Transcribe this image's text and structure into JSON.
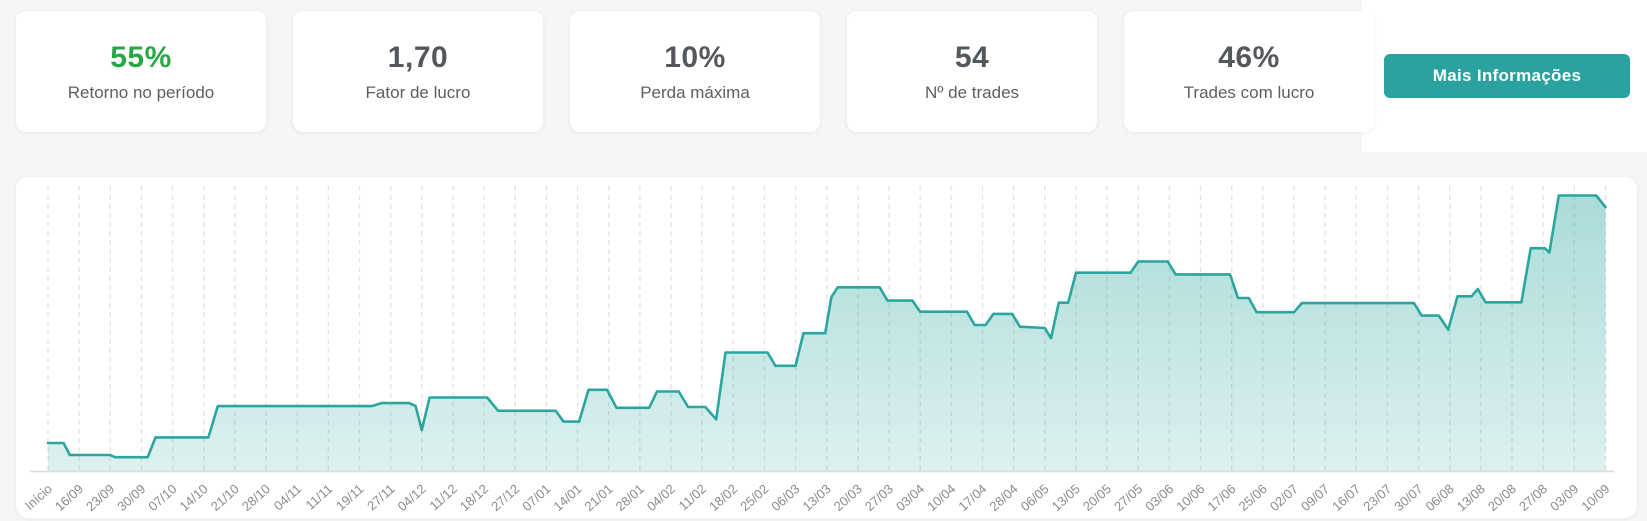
{
  "stats": {
    "cards": [
      {
        "value": "55%",
        "label": "Retorno no período",
        "value_color": "#27a745"
      },
      {
        "value": "1,70",
        "label": "Fator de lucro",
        "value_color": "#54585c"
      },
      {
        "value": "10%",
        "label": "Perda máxima",
        "value_color": "#54585c"
      },
      {
        "value": "54",
        "label": "Nº de trades",
        "value_color": "#54585c"
      },
      {
        "value": "46%",
        "label": "Trades com lucro",
        "value_color": "#54585c"
      }
    ],
    "more_info_button": "Mais Informações"
  },
  "colors": {
    "page_bg": "#f6f6f8",
    "panel_bg": "#ffffff",
    "accent_green": "#27a745",
    "stat_value_dark": "#54585c",
    "stat_label_gray": "#5b6064",
    "button_teal": "#29a2a0",
    "line_teal": "#2aa69e",
    "area_fill_top": "rgba(42,166,158,0.40)",
    "area_fill_bottom": "rgba(42,166,158,0.16)",
    "gridline": "#e4e4e6",
    "axis_line": "#dcdcde",
    "x_label_gray": "#8b8b8b"
  },
  "chart_data": {
    "type": "area",
    "title": "",
    "xlabel": "",
    "ylabel": "",
    "unit": "%",
    "legend": "none",
    "grid": "vertical-dashed",
    "x_unit": "index aligned to x_labels (weekly)",
    "ylim": [
      -6.3,
      59.5
    ],
    "x_labels": [
      "Início",
      "16/09",
      "23/09",
      "30/09",
      "07/10",
      "14/10",
      "21/10",
      "28/10",
      "04/11",
      "11/11",
      "19/11",
      "27/11",
      "04/12",
      "11/12",
      "18/12",
      "27/12",
      "07/01",
      "14/01",
      "21/01",
      "28/01",
      "04/02",
      "11/02",
      "18/02",
      "25/02",
      "06/03",
      "13/03",
      "20/03",
      "27/03",
      "03/04",
      "10/04",
      "17/04",
      "28/04",
      "06/05",
      "13/05",
      "20/05",
      "27/05",
      "03/06",
      "10/06",
      "17/06",
      "25/06",
      "02/07",
      "09/07",
      "16/07",
      "23/07",
      "30/07",
      "06/08",
      "13/08",
      "20/08",
      "27/08",
      "03/09",
      "10/09"
    ],
    "points": [
      [
        0,
        0
      ],
      [
        0.5,
        0
      ],
      [
        0.7,
        -2.8
      ],
      [
        2,
        -2.8
      ],
      [
        2.15,
        -3.3
      ],
      [
        3.2,
        -3.3
      ],
      [
        3.45,
        1.3
      ],
      [
        5.15,
        1.3
      ],
      [
        5.45,
        8.6
      ],
      [
        10.4,
        8.6
      ],
      [
        10.7,
        9.3
      ],
      [
        11.6,
        9.3
      ],
      [
        11.8,
        8.6
      ],
      [
        12,
        3
      ],
      [
        12.25,
        10.6
      ],
      [
        14.1,
        10.6
      ],
      [
        14.45,
        7.5
      ],
      [
        16.3,
        7.5
      ],
      [
        16.55,
        5
      ],
      [
        17.05,
        5
      ],
      [
        17.35,
        12.4
      ],
      [
        17.95,
        12.4
      ],
      [
        18.25,
        8.2
      ],
      [
        19.3,
        8.2
      ],
      [
        19.55,
        12
      ],
      [
        20.25,
        12
      ],
      [
        20.55,
        8.4
      ],
      [
        21.1,
        8.4
      ],
      [
        21.45,
        5.5
      ],
      [
        21.75,
        21.1
      ],
      [
        23.1,
        21.1
      ],
      [
        23.35,
        18
      ],
      [
        24,
        18
      ],
      [
        24.25,
        25.6
      ],
      [
        24.95,
        25.6
      ],
      [
        25.15,
        34
      ],
      [
        25.35,
        36.3
      ],
      [
        26.7,
        36.3
      ],
      [
        26.95,
        33.2
      ],
      [
        27.75,
        33.2
      ],
      [
        28,
        30.6
      ],
      [
        29.5,
        30.6
      ],
      [
        29.75,
        27.5
      ],
      [
        30.1,
        27.5
      ],
      [
        30.35,
        30.1
      ],
      [
        30.95,
        30.1
      ],
      [
        31.2,
        27.1
      ],
      [
        32,
        26.8
      ],
      [
        32.2,
        24.4
      ],
      [
        32.45,
        32.7
      ],
      [
        32.75,
        32.7
      ],
      [
        33,
        39.7
      ],
      [
        34.75,
        39.7
      ],
      [
        35,
        42.3
      ],
      [
        35.95,
        42.3
      ],
      [
        36.2,
        39.3
      ],
      [
        37.95,
        39.3
      ],
      [
        38.2,
        33.8
      ],
      [
        38.55,
        33.8
      ],
      [
        38.8,
        30.5
      ],
      [
        40,
        30.5
      ],
      [
        40.25,
        32.6
      ],
      [
        43.85,
        32.6
      ],
      [
        44.1,
        29.7
      ],
      [
        44.65,
        29.7
      ],
      [
        44.95,
        26.4
      ],
      [
        45.25,
        34.2
      ],
      [
        45.7,
        34.2
      ],
      [
        45.9,
        35.9
      ],
      [
        46.15,
        32.8
      ],
      [
        47.3,
        32.8
      ],
      [
        47.6,
        45.4
      ],
      [
        48.05,
        45.4
      ],
      [
        48.2,
        44.4
      ],
      [
        48.5,
        57.7
      ],
      [
        49.7,
        57.7
      ],
      [
        50,
        55
      ]
    ]
  }
}
